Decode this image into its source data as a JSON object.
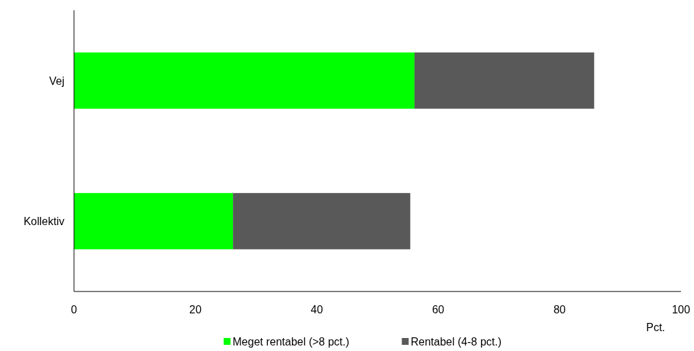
{
  "chart_data": {
    "type": "bar",
    "orientation": "horizontal",
    "stacked": true,
    "categories": [
      "Vej",
      "Kollektiv"
    ],
    "series": [
      {
        "name": "Meget rentabel (>8 pct.)",
        "color": "#00ff00",
        "values": [
          56.1,
          26.2
        ]
      },
      {
        "name": "Rentabel (4-8 pct.)",
        "color": "#595959",
        "values": [
          29.6,
          29.2
        ]
      }
    ],
    "xlim": [
      0,
      100
    ],
    "xticks": [
      0,
      20,
      40,
      60,
      80,
      100
    ],
    "xlabel": "Pct.",
    "legend": "bottom",
    "grid": false
  }
}
